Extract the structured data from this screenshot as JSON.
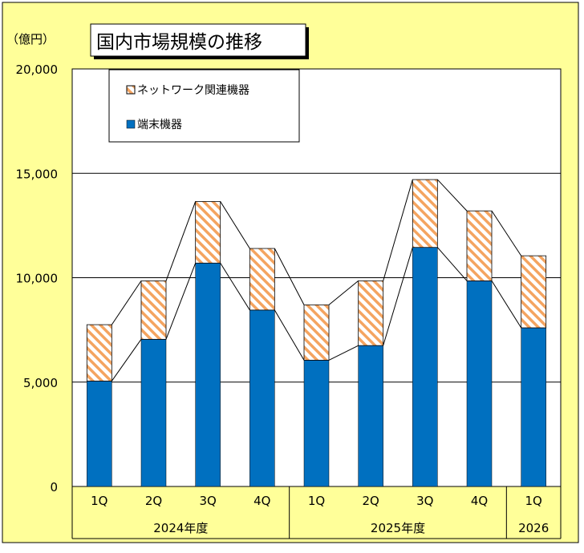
{
  "chart_data": {
    "type": "bar",
    "stacked": true,
    "title": "国内市場規模の推移",
    "unit_label": "（億円）",
    "ylim": [
      0,
      20000
    ],
    "y_ticks": [
      {
        "value": 0,
        "label": "0"
      },
      {
        "value": 5000,
        "label": "5,000"
      },
      {
        "value": 10000,
        "label": "10,000"
      },
      {
        "value": 15000,
        "label": "15,000"
      },
      {
        "value": 20000,
        "label": "20,000"
      }
    ],
    "grid": true,
    "legend_position": "top-left",
    "categories": [
      "1Q",
      "2Q",
      "3Q",
      "4Q",
      "1Q",
      "2Q",
      "3Q",
      "4Q",
      "1Q"
    ],
    "groups": [
      {
        "label": "2024年度",
        "count": 4
      },
      {
        "label": "2025年度",
        "count": 4
      },
      {
        "label": "2026",
        "count": 1
      }
    ],
    "series": [
      {
        "name": "端末機器",
        "color": "#0070C0",
        "pattern": "solid",
        "values": [
          5050,
          7050,
          10700,
          8450,
          6050,
          6750,
          11450,
          9850,
          7600
        ]
      },
      {
        "name": "ネットワーク関連機器",
        "color": "#F4A460",
        "pattern": "diagonal-hatch",
        "values": [
          2700,
          2800,
          2950,
          2950,
          2650,
          3100,
          3250,
          3350,
          3450
        ]
      }
    ],
    "legend_order": [
      "ネットワーク関連機器",
      "端末機器"
    ],
    "connector_lines": true,
    "colors": {
      "background": "#FFFF99",
      "plot_background": "#FFFFFF",
      "frame": "#000000"
    }
  }
}
